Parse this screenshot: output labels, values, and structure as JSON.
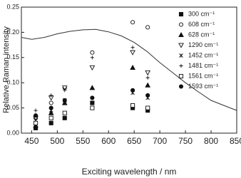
{
  "chart_data": {
    "type": "scatter",
    "x_label": "Exciting wavelength / nm",
    "y_label": "Relative Raman intensity",
    "xlim": [
      430,
      850
    ],
    "xticks": [
      450,
      500,
      550,
      600,
      650,
      700,
      750,
      800,
      850
    ],
    "ylim": [
      0,
      0.25
    ],
    "yticks": [
      {
        "value": 0,
        "label": "0.00"
      },
      {
        "value": 0.05,
        "label": "0.05"
      },
      {
        "value": 0.1,
        "label": "0.10"
      },
      {
        "value": 0.15,
        "label": "0.15"
      },
      {
        "value": 0.2,
        "label": "0.20"
      },
      {
        "value": 0.25,
        "label": "0.25"
      }
    ],
    "legend": "upper right",
    "x": [
      457.9,
      488,
      514.5,
      568.2,
      647.1,
      676.4
    ],
    "series": [
      {
        "name": "300 cm⁻¹",
        "color": "#111",
        "marker": "square",
        "values": [
          0.01,
          0.02,
          0.03,
          0.06,
          0.05,
          0.045
        ]
      },
      {
        "name": "608 cm⁻¹",
        "color": "#111",
        "marker": "circle-open",
        "values": [
          0.03,
          0.06,
          0.09,
          0.16,
          0.22,
          0.21
        ]
      },
      {
        "name": "628 cm⁻¹",
        "color": "#111",
        "marker": "triangle",
        "values": [
          0.015,
          0.04,
          0.06,
          0.09,
          0.13,
          0.095
        ]
      },
      {
        "name": "1290 cm⁻¹",
        "color": "#111",
        "marker": "triangle-down-open",
        "values": [
          0.03,
          0.07,
          0.09,
          0.13,
          0.16,
          0.12
        ]
      },
      {
        "name": "1452 cm⁻¹",
        "color": "#111",
        "marker": "star",
        "values": [
          0.025,
          0.045,
          0.065,
          0.06,
          0.08,
          0.07
        ]
      },
      {
        "name": "1481 cm⁻¹",
        "color": "#111",
        "marker": "plus",
        "values": [
          0.045,
          0.075,
          0.085,
          0.15,
          0.17,
          0.11
        ]
      },
      {
        "name": "1561 cm⁻¹",
        "color": "#111",
        "marker": "square-open",
        "values": [
          0.02,
          0.03,
          0.04,
          0.05,
          0.055,
          0.05
        ]
      },
      {
        "name": "1593 cm⁻¹",
        "color": "#111",
        "marker": "circle",
        "values": [
          0.035,
          0.05,
          0.065,
          0.07,
          0.085,
          0.075
        ]
      }
    ],
    "line": {
      "color": "#333",
      "x": [
        430,
        450,
        475,
        500,
        525,
        550,
        575,
        600,
        625,
        650,
        675,
        700,
        725,
        750,
        775,
        800,
        825,
        850
      ],
      "values": [
        0.19,
        0.186,
        0.19,
        0.197,
        0.202,
        0.205,
        0.206,
        0.201,
        0.193,
        0.18,
        0.162,
        0.14,
        0.12,
        0.1,
        0.082,
        0.065,
        0.055,
        0.045
      ]
    }
  }
}
